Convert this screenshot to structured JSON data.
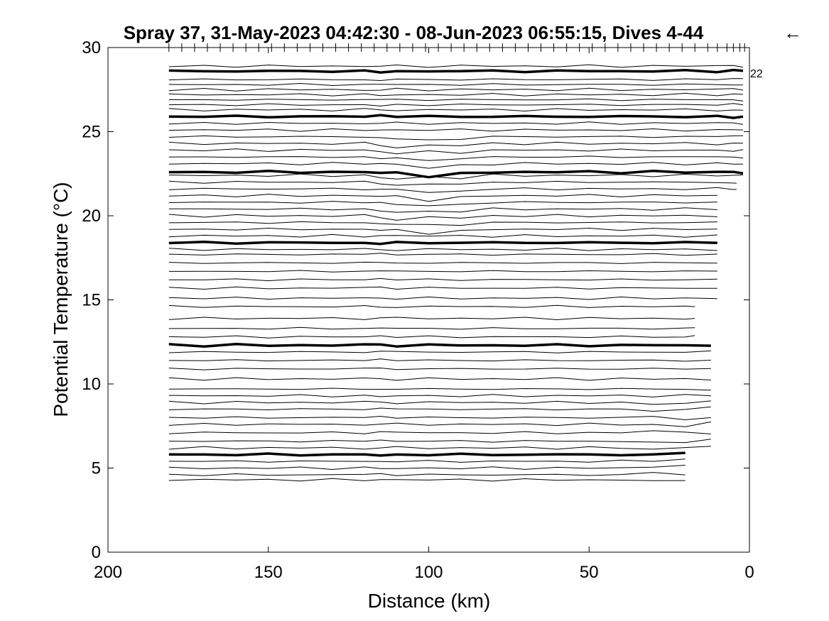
{
  "chart_data": {
    "type": "line",
    "title": "Spray 37, 31-May-2023 04:42:30 - 08-Jun-2023 06:55:15, Dives 4-44",
    "direction_arrow": "←",
    "xlabel": "Distance (km)",
    "ylabel": "Potential Temperature (°C)",
    "xlim": [
      200,
      0
    ],
    "ylim": [
      0,
      30
    ],
    "x_reversed": true,
    "xticks": [
      200,
      150,
      100,
      50,
      0
    ],
    "yticks": [
      0,
      5,
      10,
      15,
      20,
      25,
      30
    ],
    "end_label": "22",
    "grid": false,
    "dive_tick_distances_km": [
      181,
      177,
      173,
      169,
      165,
      161,
      157,
      153,
      149,
      145,
      141,
      137,
      133,
      129,
      125,
      121,
      117,
      113,
      109,
      105,
      101,
      97,
      93,
      89,
      85,
      81,
      77,
      73,
      69,
      65,
      61,
      57,
      53,
      49,
      45,
      41,
      37,
      33,
      29,
      25,
      21,
      17,
      13,
      10,
      7,
      5,
      3,
      1.5
    ],
    "contours": {
      "x": [
        181,
        170,
        160,
        150,
        140,
        130,
        120,
        115,
        110,
        100,
        90,
        80,
        70,
        60,
        50,
        40,
        30,
        20,
        10,
        5,
        2
      ],
      "thin_levels": [
        4.3,
        4.6,
        5.0,
        5.4,
        6.2,
        6.6,
        7.1,
        7.6,
        8.0,
        8.5,
        8.9,
        9.3,
        9.7,
        10.3,
        10.9,
        11.4,
        11.9,
        12.8,
        13.3,
        13.9,
        14.6,
        15.1,
        15.7,
        16.2,
        16.7,
        17.2,
        17.7,
        18.0,
        18.8,
        19.2,
        19.6,
        20.0,
        20.4,
        20.8,
        21.2,
        21.6,
        22.0,
        22.4,
        23.1,
        23.5,
        23.9,
        24.3,
        24.7,
        25.1,
        25.5,
        26.3,
        26.6,
        26.9,
        27.2,
        27.5,
        27.8,
        28.1,
        28.9
      ],
      "bold_levels": [
        5.8,
        12.3,
        18.4,
        22.6,
        25.9,
        28.6
      ],
      "end_distance_by_level": [
        [
          6.0,
          20
        ],
        [
          12.5,
          12
        ],
        [
          15.0,
          17
        ],
        [
          21.5,
          10
        ],
        [
          22.2,
          4
        ],
        [
          30.0,
          2
        ]
      ]
    }
  }
}
